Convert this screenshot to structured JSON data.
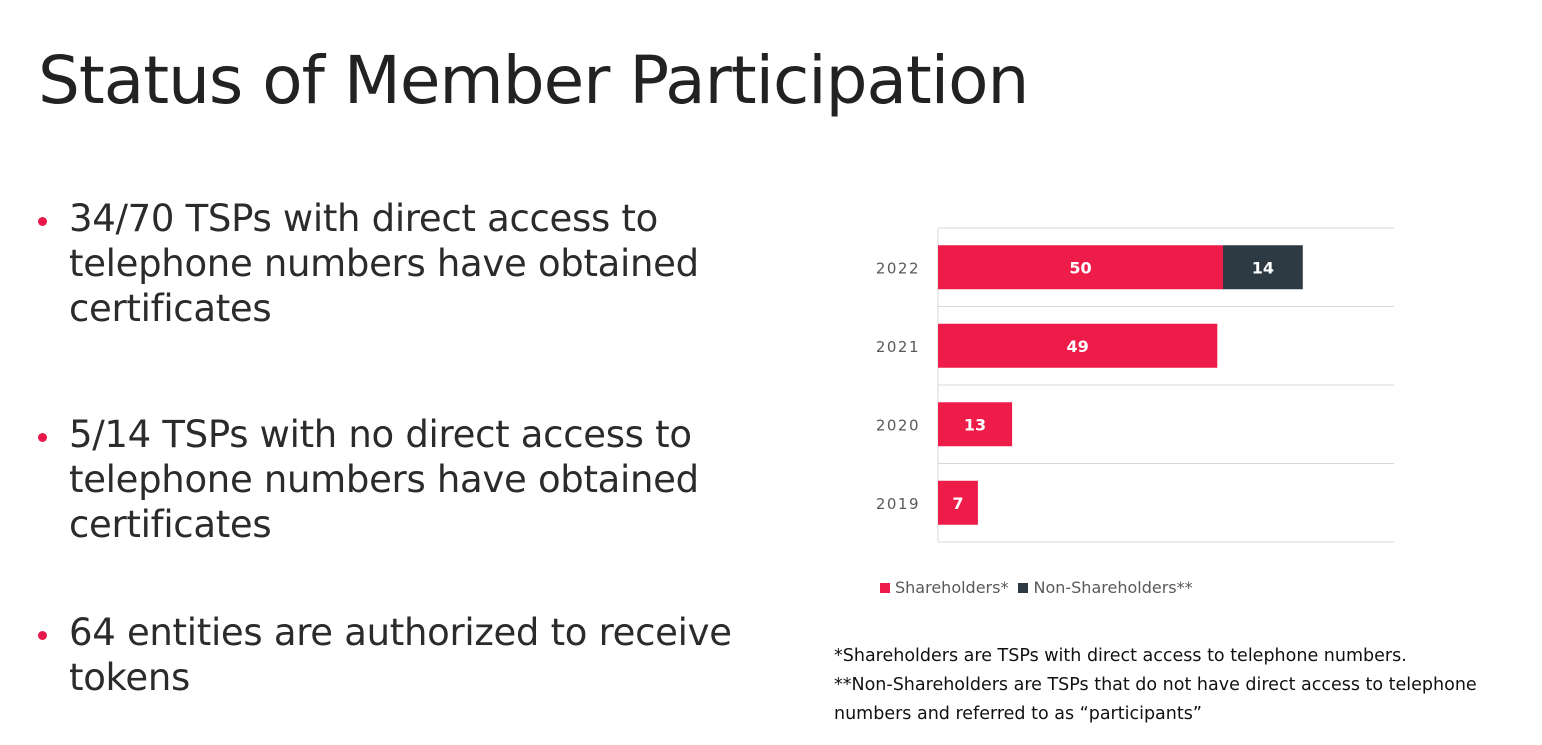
{
  "title": "Status of Member Participation",
  "bullets": [
    {
      "text": "34/70 TSPs with direct access to telephone numbers have obtained certificates"
    },
    {
      "text": "5/14 TSPs with no direct access to telephone numbers have obtained certificates"
    },
    {
      "text": "64 entities are authorized to receive tokens"
    }
  ],
  "colors": {
    "accent": "#ED1C48",
    "non_shareholder": "#2E3A43"
  },
  "chart_data": {
    "type": "bar",
    "orientation": "horizontal",
    "stacked": true,
    "categories": [
      "2022",
      "2021",
      "2020",
      "2019"
    ],
    "series": [
      {
        "name": "Shareholders*",
        "values": [
          50,
          49,
          13,
          7
        ],
        "color": "#ED1C48"
      },
      {
        "name": "Non-Shareholders**",
        "values": [
          14,
          null,
          null,
          null
        ],
        "color": "#2E3A43"
      }
    ],
    "xlim": [
      0,
      80
    ],
    "gridlines": "horizontal",
    "legend_position": "bottom",
    "data_labels": true,
    "title": "",
    "xlabel": "",
    "ylabel": ""
  },
  "footnotes": [
    "*Shareholders are TSPs with direct access to telephone numbers.",
    "**Non-Shareholders are TSPs that do not have direct access to telephone numbers and referred to as “participants”"
  ]
}
